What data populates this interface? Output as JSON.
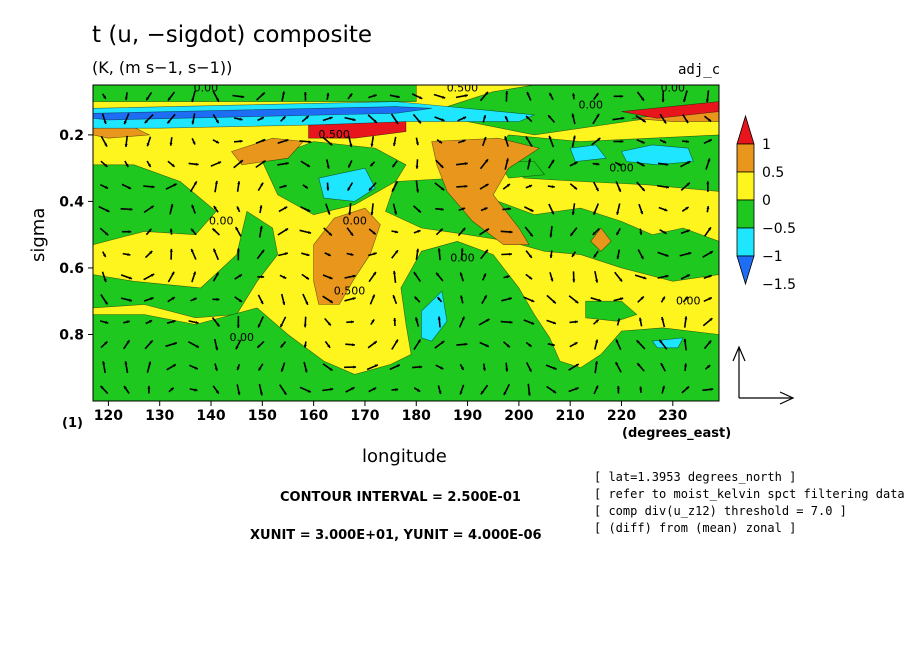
{
  "title": "t (u, −sigdot) composite",
  "units": "(K, (m s−1, s−1))",
  "panel_tag": "adj_c",
  "notes": {
    "contour_interval": "CONTOUR INTERVAL = 2.500E-01",
    "xy_unit": "XUNIT = 3.000E+01, YUNIT = 4.000E-06"
  },
  "meta_lines": [
    "[ lat=1.3953 degrees_north ]",
    "[ refer to moist_kelvin spct filtering data ]",
    "[ comp div(u_z12) threshold = 7.0 ]",
    "[ (diff) from (mean) zonal ]"
  ],
  "colors": {
    "red": "#e8161c",
    "orange": "#e8961c",
    "yellow": "#fff51e",
    "green": "#1ec81e",
    "cyan": "#1ee6ff",
    "blue": "#1e6ef5"
  },
  "chart_data": {
    "type": "heatmap",
    "title": "t (u, −sigdot) composite",
    "xlabel": "longitude",
    "xlabel_unit": "(degrees_east)",
    "ylabel": "sigma",
    "ylabel_unit": "(1)",
    "xlim": [
      117,
      239
    ],
    "ylim": [
      1.0,
      0.05
    ],
    "x_ticks": [
      120,
      130,
      140,
      150,
      160,
      170,
      180,
      190,
      200,
      210,
      220,
      230
    ],
    "y_ticks": [
      0.2,
      0.4,
      0.6,
      0.8
    ],
    "colorbar": {
      "levels": [
        -1.5,
        -1,
        -0.5,
        0,
        0.5,
        1
      ],
      "labels": [
        "1",
        "0.5",
        "0",
        "−0.5",
        "−1",
        "−1.5"
      ],
      "bins": [
        "red",
        "orange",
        "yellow",
        "green",
        "cyan",
        "blue"
      ]
    },
    "regions": [
      {
        "color": "yellow",
        "pts": [
          [
            117,
            0.05
          ],
          [
            239,
            0.05
          ],
          [
            239,
            1.0
          ],
          [
            117,
            1.0
          ]
        ]
      },
      {
        "color": "green",
        "pts": [
          [
            117,
            0.05
          ],
          [
            180,
            0.05
          ],
          [
            180,
            0.1
          ],
          [
            117,
            0.1
          ]
        ]
      },
      {
        "color": "green",
        "pts": [
          [
            203,
            0.05
          ],
          [
            239,
            0.05
          ],
          [
            239,
            0.12
          ],
          [
            203,
            0.2
          ],
          [
            190,
            0.16
          ],
          [
            185,
            0.12
          ],
          [
            195,
            0.07
          ]
        ]
      },
      {
        "color": "green",
        "pts": [
          [
            198,
            0.2
          ],
          [
            212,
            0.22
          ],
          [
            239,
            0.2
          ],
          [
            239,
            0.37
          ],
          [
            225,
            0.35
          ],
          [
            212,
            0.34
          ],
          [
            201,
            0.33
          ],
          [
            195,
            0.25
          ]
        ]
      },
      {
        "color": "green",
        "pts": [
          [
            150,
            0.28
          ],
          [
            160,
            0.22
          ],
          [
            172,
            0.24
          ],
          [
            178,
            0.29
          ],
          [
            176,
            0.34
          ],
          [
            168,
            0.41
          ],
          [
            160,
            0.44
          ],
          [
            153,
            0.38
          ]
        ]
      },
      {
        "color": "green",
        "pts": [
          [
            117,
            0.29
          ],
          [
            125,
            0.29
          ],
          [
            134,
            0.34
          ],
          [
            141,
            0.43
          ],
          [
            137,
            0.5
          ],
          [
            127,
            0.49
          ],
          [
            117,
            0.53
          ]
        ]
      },
      {
        "color": "green",
        "pts": [
          [
            147,
            0.43
          ],
          [
            152,
            0.48
          ],
          [
            153,
            0.56
          ],
          [
            149,
            0.64
          ],
          [
            145,
            0.74
          ],
          [
            137,
            0.75
          ],
          [
            127,
            0.71
          ],
          [
            117,
            0.72
          ],
          [
            117,
            0.62
          ],
          [
            125,
            0.64
          ],
          [
            138,
            0.66
          ],
          [
            145,
            0.56
          ]
        ]
      },
      {
        "color": "green",
        "pts": [
          [
            117,
            0.74
          ],
          [
            127,
            0.74
          ],
          [
            137,
            0.77
          ],
          [
            149,
            0.72
          ],
          [
            155,
            0.8
          ],
          [
            162,
            0.88
          ],
          [
            168,
            0.92
          ],
          [
            175,
            0.89
          ],
          [
            179,
            0.86
          ],
          [
            178,
            0.77
          ],
          [
            177,
            0.66
          ],
          [
            181,
            0.55
          ],
          [
            188,
            0.52
          ],
          [
            195,
            0.56
          ],
          [
            200,
            0.66
          ],
          [
            203,
            0.74
          ],
          [
            206,
            0.81
          ],
          [
            208,
            0.88
          ],
          [
            212,
            0.9
          ],
          [
            216,
            0.86
          ],
          [
            220,
            0.79
          ],
          [
            228,
            0.78
          ],
          [
            239,
            0.8
          ],
          [
            239,
            1.0
          ],
          [
            117,
            1.0
          ]
        ]
      },
      {
        "color": "green",
        "pts": [
          [
            176,
            0.34
          ],
          [
            188,
            0.33
          ],
          [
            196,
            0.4
          ],
          [
            203,
            0.44
          ],
          [
            212,
            0.42
          ],
          [
            220,
            0.46
          ],
          [
            226,
            0.5
          ],
          [
            232,
            0.48
          ],
          [
            239,
            0.52
          ],
          [
            239,
            0.62
          ],
          [
            230,
            0.64
          ],
          [
            220,
            0.6
          ],
          [
            212,
            0.56
          ],
          [
            205,
            0.55
          ],
          [
            198,
            0.52
          ],
          [
            190,
            0.5
          ],
          [
            181,
            0.48
          ],
          [
            174,
            0.43
          ]
        ]
      },
      {
        "color": "green",
        "pts": [
          [
            213,
            0.7
          ],
          [
            220,
            0.7
          ],
          [
            223,
            0.74
          ],
          [
            219,
            0.76
          ],
          [
            213,
            0.75
          ]
        ]
      },
      {
        "color": "green",
        "pts": [
          [
            196,
            0.28
          ],
          [
            203,
            0.28
          ],
          [
            205,
            0.32
          ],
          [
            198,
            0.33
          ]
        ]
      },
      {
        "color": "orange",
        "pts": [
          [
            144,
            0.25
          ],
          [
            152,
            0.21
          ],
          [
            158,
            0.22
          ],
          [
            155,
            0.27
          ],
          [
            146,
            0.29
          ]
        ]
      },
      {
        "color": "orange",
        "pts": [
          [
            183,
            0.22
          ],
          [
            196,
            0.21
          ],
          [
            204,
            0.24
          ],
          [
            198,
            0.3
          ],
          [
            195,
            0.38
          ],
          [
            200,
            0.48
          ],
          [
            202,
            0.53
          ],
          [
            197,
            0.53
          ],
          [
            191,
            0.46
          ],
          [
            186,
            0.37
          ],
          [
            184,
            0.29
          ]
        ]
      },
      {
        "color": "orange",
        "pts": [
          [
            160,
            0.53
          ],
          [
            164,
            0.45
          ],
          [
            170,
            0.42
          ],
          [
            173,
            0.47
          ],
          [
            171,
            0.56
          ],
          [
            168,
            0.63
          ],
          [
            165,
            0.71
          ],
          [
            161,
            0.71
          ],
          [
            160,
            0.64
          ]
        ]
      },
      {
        "color": "orange",
        "pts": [
          [
            222,
            0.15
          ],
          [
            239,
            0.12
          ],
          [
            239,
            0.16
          ],
          [
            230,
            0.16
          ]
        ]
      },
      {
        "color": "orange",
        "pts": [
          [
            216,
            0.48
          ],
          [
            218,
            0.52
          ],
          [
            216,
            0.55
          ],
          [
            214,
            0.52
          ]
        ]
      },
      {
        "color": "orange",
        "pts": [
          [
            117,
            0.18
          ],
          [
            124,
            0.17
          ],
          [
            128,
            0.2
          ],
          [
            120,
            0.21
          ],
          [
            117,
            0.2
          ]
        ]
      },
      {
        "color": "red",
        "pts": [
          [
            159,
            0.17
          ],
          [
            170,
            0.16
          ],
          [
            178,
            0.16
          ],
          [
            178,
            0.19
          ],
          [
            168,
            0.21
          ],
          [
            159,
            0.21
          ]
        ]
      },
      {
        "color": "red",
        "pts": [
          [
            220,
            0.13
          ],
          [
            239,
            0.1
          ],
          [
            239,
            0.13
          ],
          [
            227,
            0.15
          ]
        ]
      },
      {
        "color": "cyan",
        "pts": [
          [
            117,
            0.12
          ],
          [
            176,
            0.1
          ],
          [
            183,
            0.11
          ],
          [
            203,
            0.14
          ],
          [
            200,
            0.16
          ],
          [
            178,
            0.16
          ],
          [
            160,
            0.17
          ],
          [
            130,
            0.18
          ],
          [
            117,
            0.18
          ]
        ]
      },
      {
        "color": "cyan",
        "pts": [
          [
            210,
            0.24
          ],
          [
            215,
            0.23
          ],
          [
            217,
            0.27
          ],
          [
            211,
            0.28
          ]
        ]
      },
      {
        "color": "cyan",
        "pts": [
          [
            220,
            0.25
          ],
          [
            226,
            0.23
          ],
          [
            233,
            0.24
          ],
          [
            234,
            0.28
          ],
          [
            227,
            0.29
          ],
          [
            221,
            0.28
          ]
        ]
      },
      {
        "color": "cyan",
        "pts": [
          [
            161,
            0.33
          ],
          [
            170,
            0.3
          ],
          [
            172,
            0.36
          ],
          [
            168,
            0.4
          ],
          [
            162,
            0.39
          ]
        ]
      },
      {
        "color": "cyan",
        "pts": [
          [
            181,
            0.73
          ],
          [
            185,
            0.67
          ],
          [
            186,
            0.76
          ],
          [
            183,
            0.82
          ],
          [
            181,
            0.81
          ]
        ]
      },
      {
        "color": "cyan",
        "pts": [
          [
            226,
            0.82
          ],
          [
            232,
            0.81
          ],
          [
            231,
            0.84
          ],
          [
            227,
            0.84
          ]
        ]
      },
      {
        "color": "blue",
        "pts": [
          [
            117,
            0.135
          ],
          [
            176,
            0.115
          ],
          [
            183,
            0.12
          ],
          [
            176,
            0.135
          ],
          [
            120,
            0.155
          ],
          [
            117,
            0.15
          ]
        ]
      }
    ],
    "contour_labels": [
      {
        "text": "0.00",
        "lon": 139,
        "sigma": 0.07
      },
      {
        "text": "0.500",
        "lon": 189,
        "sigma": 0.07
      },
      {
        "text": "0.00",
        "lon": 214,
        "sigma": 0.12
      },
      {
        "text": "0.00",
        "lon": 230,
        "sigma": 0.07
      },
      {
        "text": "0.500",
        "lon": 164,
        "sigma": 0.21
      },
      {
        "text": "0.00",
        "lon": 142,
        "sigma": 0.47
      },
      {
        "text": "0.00",
        "lon": 168,
        "sigma": 0.47
      },
      {
        "text": "0.500",
        "lon": 167,
        "sigma": 0.68
      },
      {
        "text": "0.00",
        "lon": 189,
        "sigma": 0.58
      },
      {
        "text": "0.00",
        "lon": 146,
        "sigma": 0.82
      },
      {
        "text": "0.00",
        "lon": 233,
        "sigma": 0.71
      },
      {
        "text": "0.00",
        "lon": 220,
        "sigma": 0.31
      }
    ],
    "vector_field": {
      "columns": 28,
      "rows": 14,
      "reference_vector": {
        "xunit": "3.000E+01",
        "yunit": "4.000E-06"
      }
    }
  }
}
